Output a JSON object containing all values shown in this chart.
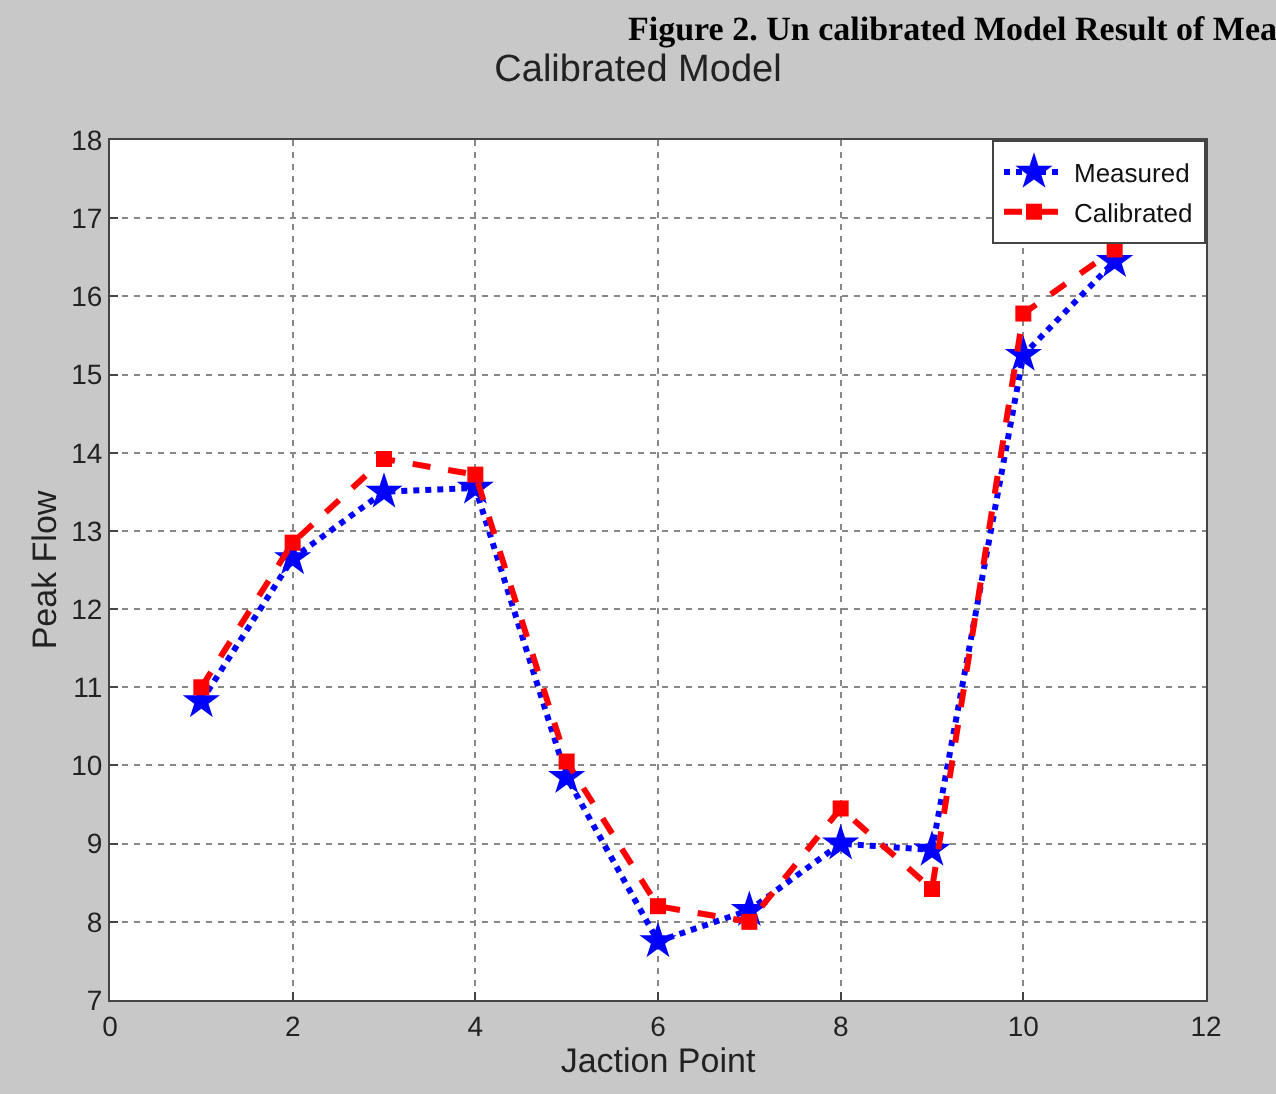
{
  "chart_data": {
    "type": "line",
    "title": "Calibrated Model",
    "xlabel": "Jaction Point",
    "ylabel": "Peak Flow",
    "annotations": [
      "Figure 2. Un calibrated Model Result of Mea"
    ],
    "x": [
      1,
      2,
      3,
      4,
      5,
      6,
      7,
      8,
      9,
      10,
      11
    ],
    "series": [
      {
        "name": "Measured",
        "color": "#0000ff",
        "marker": "star",
        "line_style": "dotted",
        "values": [
          10.82,
          12.65,
          13.5,
          13.55,
          9.85,
          7.75,
          8.15,
          9.0,
          8.92,
          15.25,
          16.45
        ]
      },
      {
        "name": "Calibrated",
        "color": "#ff0000",
        "marker": "square",
        "line_style": "dashed",
        "values": [
          11.0,
          12.85,
          13.92,
          13.72,
          10.05,
          8.2,
          8.0,
          9.45,
          8.42,
          15.78,
          16.6
        ]
      }
    ],
    "xlim": [
      0,
      12
    ],
    "xticks": [
      0,
      2,
      4,
      6,
      8,
      10,
      12
    ],
    "ylim": [
      7,
      18
    ],
    "yticks": [
      7,
      8,
      9,
      10,
      11,
      12,
      13,
      14,
      15,
      16,
      17,
      18
    ],
    "grid": true,
    "legend": "top right"
  }
}
